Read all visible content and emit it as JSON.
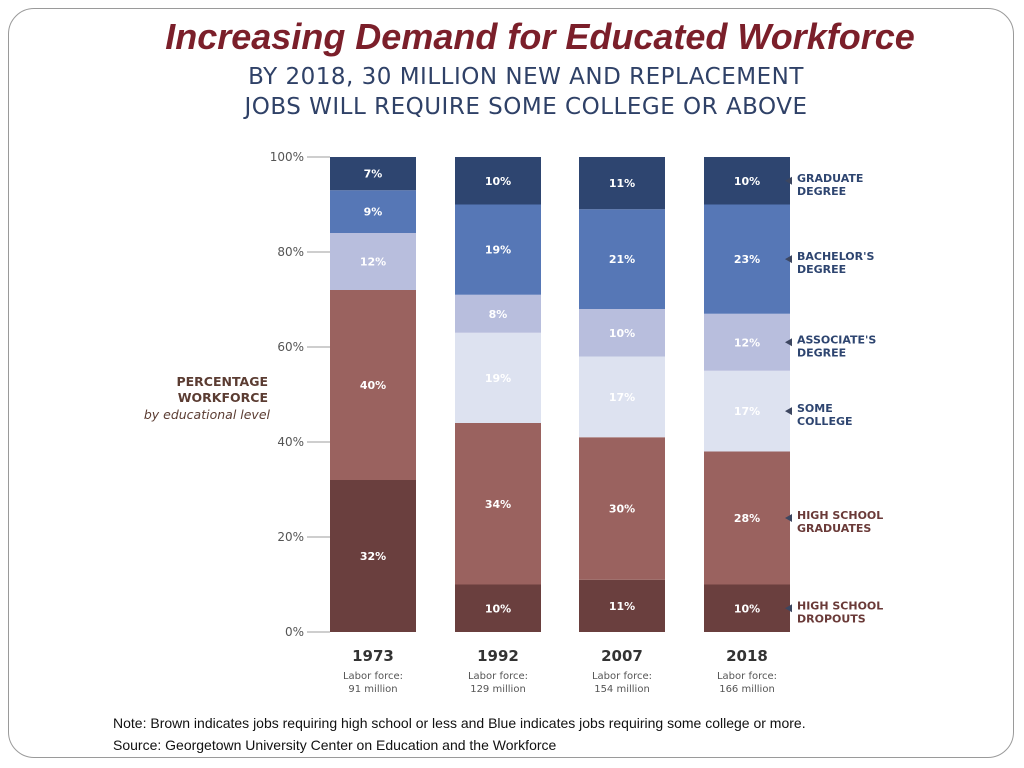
{
  "title": "Increasing Demand for Educated Workforce",
  "subtitle_lines": [
    "BY 2018, 30 MILLION NEW AND REPLACEMENT",
    "JOBS WILL REQUIRE SOME COLLEGE OR ABOVE"
  ],
  "footnotes": {
    "note": "Note: Brown indicates jobs requiring high school or less and Blue indicates jobs requiring some college or more.",
    "source": "Source: Georgetown University Center on Education and the Workforce"
  },
  "colors": {
    "title": "#7b1f2a",
    "heading": "#2f4167",
    "high_school_dropouts": "#6a3f3e",
    "high_school_graduates": "#9a625f",
    "some_college": "#dde2f0",
    "associates_degree": "#b8bedd",
    "bachelors_degree": "#5677b6",
    "graduate_degree": "#2e4570"
  },
  "chart_data": {
    "type": "bar",
    "stacked": true,
    "categories": [
      "1973",
      "1992",
      "2007",
      "2018"
    ],
    "category_sublabels": [
      [
        "Labor force:",
        "91 million"
      ],
      [
        "Labor force:",
        "129 million"
      ],
      [
        "Labor force:",
        "154 million"
      ],
      [
        "Labor force:",
        "166 million"
      ]
    ],
    "series": [
      {
        "name": "HIGH SCHOOL DROPOUTS",
        "label_lines": [
          "HIGH SCHOOL",
          "DROPOUTS"
        ],
        "values": [
          32,
          10,
          11,
          10
        ],
        "labels": [
          "32%",
          "10%",
          "11%",
          "10%"
        ],
        "color": "#6a3f3e"
      },
      {
        "name": "HIGH SCHOOL GRADUATES",
        "label_lines": [
          "HIGH SCHOOL",
          "GRADUATES"
        ],
        "values": [
          40,
          34,
          30,
          28
        ],
        "labels": [
          "40%",
          "34%",
          "30%",
          "28%"
        ],
        "color": "#9a625f"
      },
      {
        "name": "SOME COLLEGE",
        "label_lines": [
          "SOME",
          "COLLEGE"
        ],
        "values": [
          0,
          19,
          17,
          17
        ],
        "labels": [
          "",
          "19%",
          "17%",
          "17%"
        ],
        "color": "#dde2f0"
      },
      {
        "name": "ASSOCIATE'S DEGREE",
        "label_lines": [
          "ASSOCIATE'S",
          "DEGREE"
        ],
        "values": [
          12,
          8,
          10,
          12
        ],
        "labels": [
          "12%",
          "8%",
          "10%",
          "12%"
        ],
        "color": "#b8bedd"
      },
      {
        "name": "BACHELOR'S DEGREE",
        "label_lines": [
          "BACHELOR'S",
          "DEGREE"
        ],
        "values": [
          9,
          19,
          21,
          23
        ],
        "labels": [
          "9%",
          "19%",
          "21%",
          "23%"
        ],
        "color": "#5677b6"
      },
      {
        "name": "GRADUATE DEGREE",
        "label_lines": [
          "GRADUATE",
          "DEGREE"
        ],
        "values": [
          7,
          10,
          11,
          10
        ],
        "labels": [
          "7%",
          "10%",
          "11%",
          "10%"
        ],
        "color": "#2e4570"
      }
    ],
    "y_tick_labels": [
      "0%",
      "20%",
      "40%",
      "60%",
      "80%",
      "100%"
    ],
    "y_ticks": [
      0,
      20,
      40,
      60,
      80,
      100
    ],
    "ylim": [
      0,
      100
    ],
    "ylabel_lines": [
      "PERCENTAGE",
      "WORKFORCE"
    ],
    "ylabel_caption": "by educational level",
    "legend_placement": "right",
    "grid": false
  }
}
